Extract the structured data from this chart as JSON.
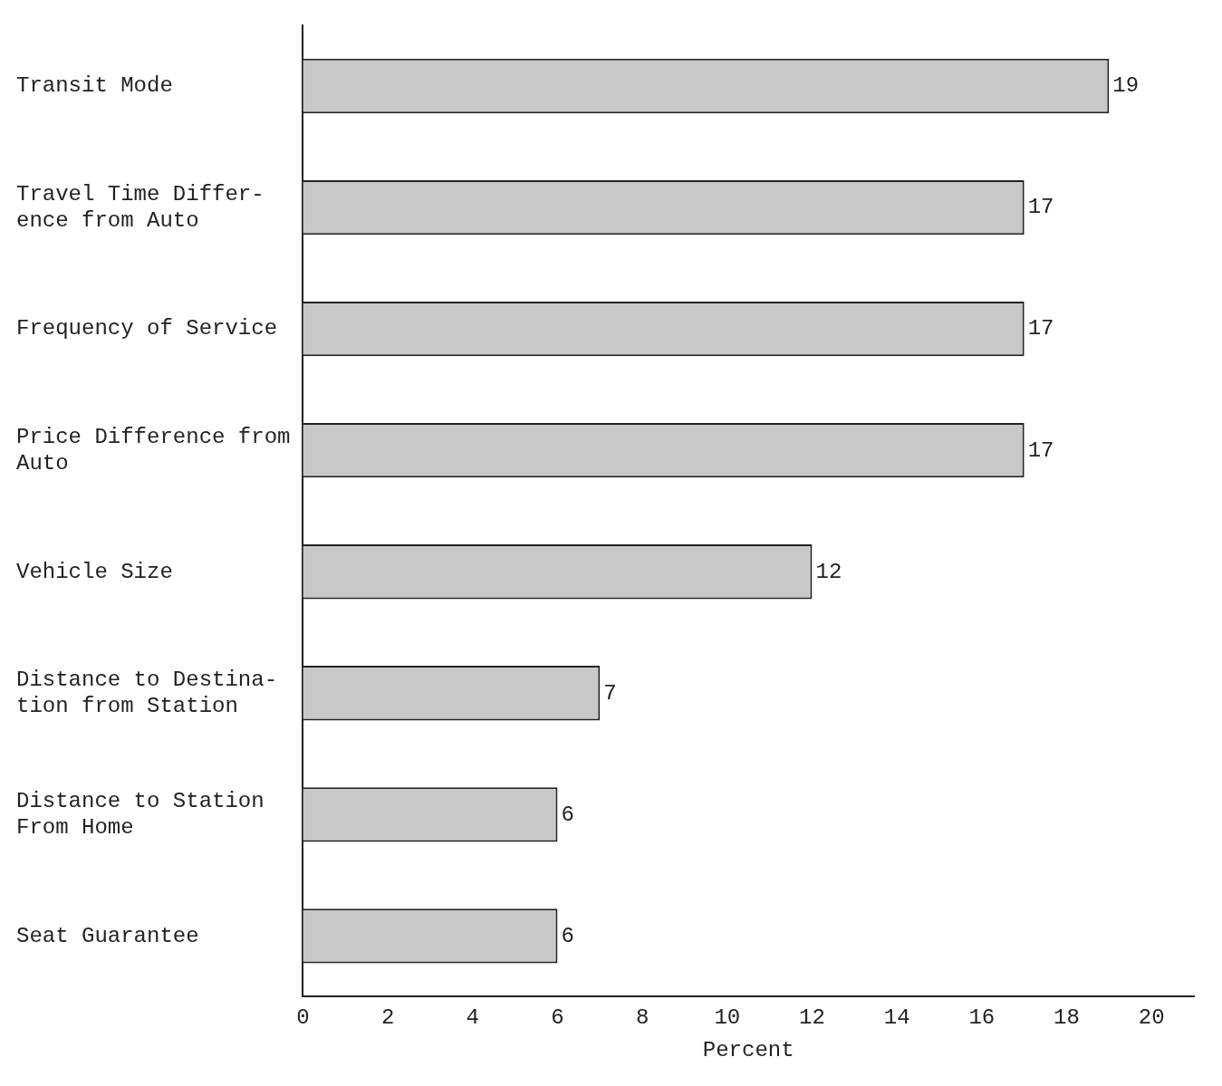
{
  "chart_data": {
    "type": "bar",
    "orientation": "horizontal",
    "categories": [
      "Transit Mode",
      "Travel Time Differ-\nence from Auto",
      "Frequency of Service",
      "Price Difference from\nAuto",
      "Vehicle Size",
      "Distance to Destina-\ntion from Station",
      "Distance to Station\nFrom Home",
      "Seat Guarantee"
    ],
    "values": [
      19,
      17,
      17,
      17,
      12,
      7,
      6,
      6
    ],
    "color": "#c8c8c8",
    "xlabel": "Percent",
    "xlim": [
      0,
      21
    ],
    "xticks": [
      0,
      2,
      4,
      6,
      8,
      10,
      12,
      14,
      16,
      18,
      20
    ],
    "data_labels": true,
    "grid": false,
    "legend": false
  }
}
